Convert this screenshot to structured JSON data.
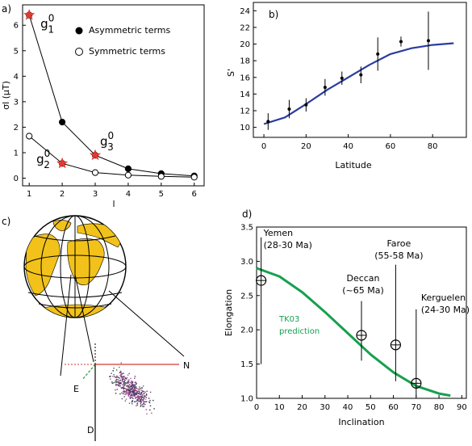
{
  "chart_data": [
    {
      "panel": "a)",
      "type": "line",
      "xlabel": "l",
      "ylabel": "σl (μT)",
      "xlim": [
        0.8,
        6.3
      ],
      "ylim": [
        -0.3,
        6.8
      ],
      "xticks": [
        1,
        2,
        3,
        4,
        5,
        6
      ],
      "yticks": [
        0,
        1,
        2,
        3,
        4,
        5,
        6
      ],
      "legend": {
        "placement": "top-right",
        "entries": [
          "Asymmetric terms",
          "Symmetric terms"
        ]
      },
      "series": [
        {
          "name": "Asymmetric terms",
          "marker": "filled-circle",
          "x": [
            1,
            2,
            3,
            4,
            5,
            6
          ],
          "y": [
            6.4,
            2.2,
            0.9,
            0.37,
            0.18,
            0.09
          ]
        },
        {
          "name": "Symmetric terms",
          "marker": "open-circle",
          "x": [
            1,
            2,
            3,
            4,
            5,
            6
          ],
          "y": [
            1.65,
            0.58,
            0.22,
            0.12,
            0.07,
            0.04
          ]
        }
      ],
      "highlights": [
        {
          "x": 1,
          "y": 6.4,
          "base": "g",
          "sub": "1",
          "sup": "0"
        },
        {
          "x": 2,
          "y": 0.58,
          "base": "g",
          "sub": "2",
          "sup": "0"
        },
        {
          "x": 3,
          "y": 0.9,
          "base": "g",
          "sub": "3",
          "sup": "0"
        }
      ],
      "highlight_color": "#e03a32"
    },
    {
      "panel": "b)",
      "type": "scatter",
      "xlabel": "Latitude",
      "ylabel": "S'",
      "xlim": [
        -5,
        96
      ],
      "ylim": [
        8.8,
        25
      ],
      "xticks": [
        0,
        20,
        40,
        60,
        80
      ],
      "yticks": [
        10,
        12,
        14,
        16,
        18,
        20,
        22,
        24
      ],
      "points": [
        {
          "x": 2,
          "y": 10.7,
          "err": 1.0
        },
        {
          "x": 12,
          "y": 12.2,
          "err": 1.1
        },
        {
          "x": 20,
          "y": 12.7,
          "err": 0.8
        },
        {
          "x": 29,
          "y": 14.8,
          "err": 1.0
        },
        {
          "x": 37,
          "y": 15.9,
          "err": 0.8
        },
        {
          "x": 46,
          "y": 16.3,
          "err": 1.0
        },
        {
          "x": 54,
          "y": 18.8,
          "err": 2.0
        },
        {
          "x": 65,
          "y": 20.3,
          "err": 0.6
        },
        {
          "x": 78,
          "y": 20.4,
          "err": 3.5
        }
      ],
      "curve": {
        "x": [
          0,
          10,
          20,
          30,
          40,
          50,
          60,
          70,
          80,
          90
        ],
        "y": [
          10.4,
          11.2,
          12.8,
          14.5,
          16.0,
          17.5,
          18.8,
          19.5,
          19.9,
          20.1
        ]
      },
      "curve_color": "#2a3c9e"
    },
    {
      "panel": "d)",
      "type": "line",
      "xlabel": "Inclination",
      "ylabel": "Elongation",
      "xlim": [
        0,
        92
      ],
      "ylim": [
        1.0,
        3.5
      ],
      "xticks": [
        0,
        10,
        20,
        30,
        40,
        50,
        60,
        70,
        80,
        90
      ],
      "yticks": [
        1.0,
        1.5,
        2.0,
        2.5,
        3.0,
        3.5
      ],
      "curve_label": "TK03 prediction",
      "curve_color": "#16a04e",
      "curve": {
        "x": [
          0,
          10,
          20,
          30,
          40,
          50,
          60,
          70,
          80,
          85
        ],
        "y": [
          2.9,
          2.78,
          2.55,
          2.26,
          1.95,
          1.64,
          1.38,
          1.18,
          1.07,
          1.04
        ]
      },
      "points": [
        {
          "label": "Yemen",
          "age": "(28-30 Ma)",
          "x": 2,
          "y": 2.72,
          "ylo": 1.5,
          "yhi": 3.35
        },
        {
          "label": "Deccan",
          "age": "(~65 Ma)",
          "x": 46,
          "y": 1.92,
          "ylo": 1.55,
          "yhi": 2.42
        },
        {
          "label": "Faroe",
          "age": "(55-58 Ma)",
          "x": 61,
          "y": 1.78,
          "ylo": 1.25,
          "yhi": 2.95
        },
        {
          "label": "Kerguelen",
          "age": "(24-30 Ma)",
          "x": 70,
          "y": 1.22,
          "ylo": 1.02,
          "yhi": 2.3
        }
      ]
    }
  ],
  "globe_panel": {
    "label": "c)",
    "north_label": "N",
    "east_label": "E",
    "down_label": "D",
    "land_color": "#f2c21a"
  }
}
